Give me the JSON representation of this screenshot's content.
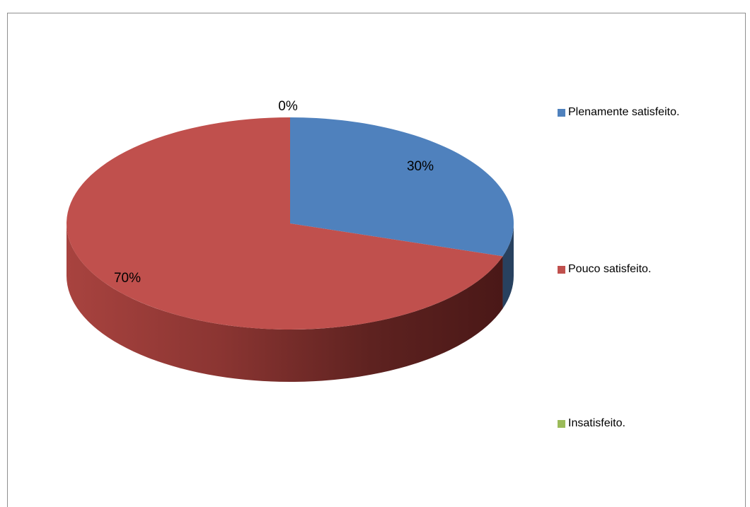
{
  "chart_data": {
    "type": "pie",
    "title": "",
    "three_d": true,
    "categories": [
      "Plenamente satisfeito.",
      "Pouco satisfeito.",
      "Insatisfeito."
    ],
    "values": [
      30,
      70,
      0
    ],
    "labels": [
      "30%",
      "70%",
      "0%"
    ],
    "colors": [
      "#4f81bd",
      "#c0504d",
      "#9bbb59"
    ],
    "legend_position": "right"
  }
}
